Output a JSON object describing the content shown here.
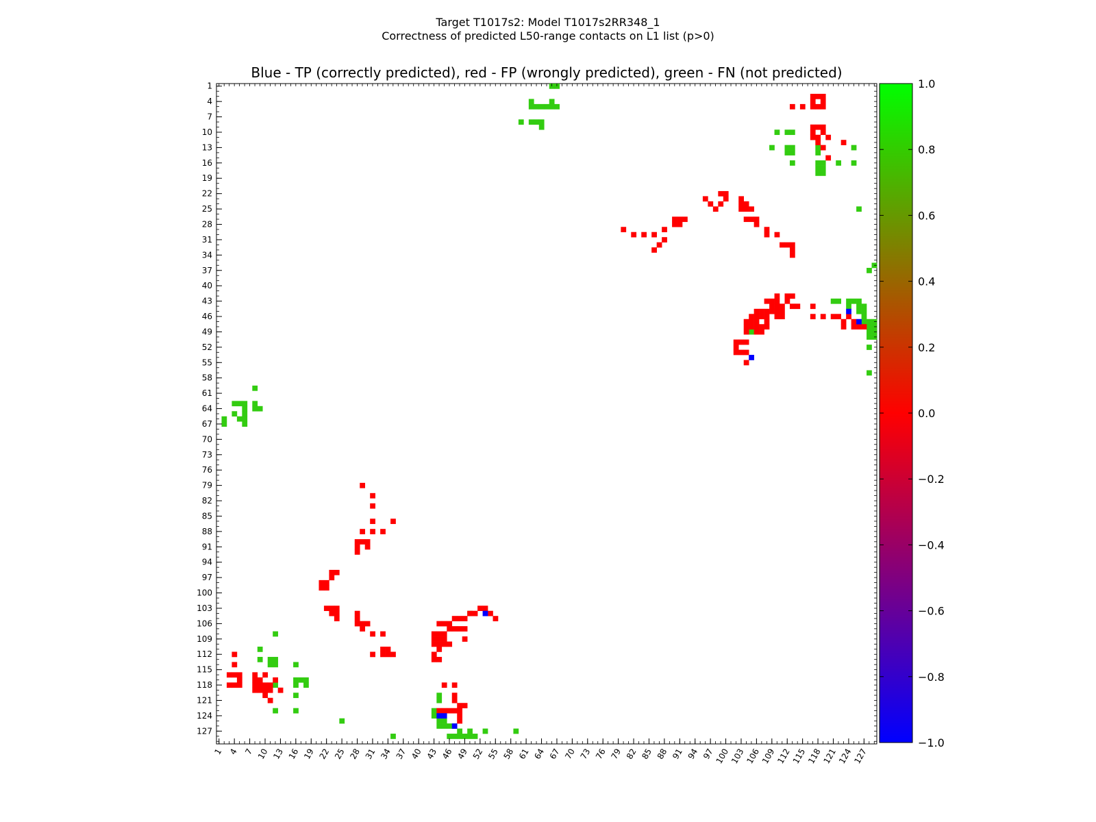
{
  "chart_data": {
    "type": "heatmap",
    "title_line1": "Target T1017s2: Model T1017s2RR348_1",
    "title_line2": "Correctness of predicted L50-range contacts on L1 list (p>0)",
    "subtitle": "Blue - TP (correctly predicted), red - FP (wrongly predicted), green - FN (not predicted)",
    "n_residues": 129,
    "x_range": [
      1,
      129
    ],
    "y_range": [
      1,
      129
    ],
    "x_tick_labels": [
      "1",
      "4",
      "7",
      "10",
      "13",
      "16",
      "19",
      "22",
      "25",
      "28",
      "31",
      "34",
      "37",
      "40",
      "43",
      "46",
      "49",
      "52",
      "55",
      "58",
      "61",
      "64",
      "67",
      "70",
      "73",
      "76",
      "79",
      "82",
      "85",
      "88",
      "91",
      "94",
      "97",
      "100",
      "103",
      "106",
      "109",
      "112",
      "115",
      "118",
      "121",
      "124",
      "127"
    ],
    "y_tick_labels": [
      "1",
      "4",
      "7",
      "10",
      "13",
      "16",
      "19",
      "22",
      "25",
      "28",
      "31",
      "34",
      "37",
      "40",
      "43",
      "46",
      "49",
      "52",
      "55",
      "58",
      "61",
      "64",
      "67",
      "70",
      "73",
      "76",
      "79",
      "82",
      "85",
      "88",
      "91",
      "94",
      "97",
      "100",
      "103",
      "106",
      "109",
      "112",
      "115",
      "118",
      "121",
      "124",
      "127"
    ],
    "colorbar": {
      "min": -1.0,
      "max": 1.0,
      "tick_labels": [
        "1.0",
        "0.8",
        "0.6",
        "0.4",
        "0.2",
        "0.0",
        "−0.2",
        "−0.4",
        "−0.6",
        "−0.8",
        "−1.0"
      ],
      "colors": [
        "#0000ff",
        "#ff0000",
        "#00ff00"
      ]
    },
    "category_colors": {
      "TP": "#0000ff",
      "FP": "#ff0000",
      "FN": "#33cc11"
    },
    "cells": {
      "TP": [
        [
          44,
          124
        ],
        [
          45,
          124
        ],
        [
          47,
          126
        ],
        [
          53,
          104
        ],
        [
          105,
          54
        ],
        [
          124,
          45
        ],
        [
          126,
          47
        ]
      ],
      "FP": [
        [
          29,
          79
        ],
        [
          31,
          81
        ],
        [
          31,
          83
        ],
        [
          29,
          88
        ],
        [
          31,
          88
        ],
        [
          33,
          88
        ],
        [
          31,
          86
        ],
        [
          35,
          86
        ],
        [
          28,
          90
        ],
        [
          29,
          90
        ],
        [
          30,
          90
        ],
        [
          28,
          91
        ],
        [
          30,
          91
        ],
        [
          28,
          92
        ],
        [
          23,
          96
        ],
        [
          24,
          96
        ],
        [
          23,
          97
        ],
        [
          21,
          98
        ],
        [
          22,
          98
        ],
        [
          21,
          99
        ],
        [
          22,
          99
        ],
        [
          22,
          103
        ],
        [
          23,
          103
        ],
        [
          24,
          103
        ],
        [
          23,
          104
        ],
        [
          24,
          104
        ],
        [
          24,
          105
        ],
        [
          28,
          104
        ],
        [
          28,
          105
        ],
        [
          28,
          106
        ],
        [
          29,
          106
        ],
        [
          30,
          106
        ],
        [
          29,
          107
        ],
        [
          31,
          108
        ],
        [
          33,
          108
        ],
        [
          33,
          111
        ],
        [
          34,
          111
        ],
        [
          33,
          112
        ],
        [
          34,
          112
        ],
        [
          35,
          112
        ],
        [
          31,
          112
        ],
        [
          44,
          106
        ],
        [
          45,
          106
        ],
        [
          46,
          106
        ],
        [
          47,
          105
        ],
        [
          48,
          105
        ],
        [
          49,
          105
        ],
        [
          50,
          104
        ],
        [
          51,
          104
        ],
        [
          52,
          103
        ],
        [
          53,
          103
        ],
        [
          54,
          104
        ],
        [
          55,
          105
        ],
        [
          46,
          107
        ],
        [
          47,
          107
        ],
        [
          48,
          107
        ],
        [
          49,
          107
        ],
        [
          43,
          108
        ],
        [
          44,
          108
        ],
        [
          45,
          108
        ],
        [
          43,
          109
        ],
        [
          44,
          109
        ],
        [
          45,
          109
        ],
        [
          43,
          110
        ],
        [
          44,
          110
        ],
        [
          45,
          110
        ],
        [
          46,
          110
        ],
        [
          44,
          111
        ],
        [
          43,
          112
        ],
        [
          43,
          113
        ],
        [
          44,
          113
        ],
        [
          49,
          109
        ],
        [
          4,
          112
        ],
        [
          4,
          114
        ],
        [
          3,
          116
        ],
        [
          4,
          116
        ],
        [
          5,
          116
        ],
        [
          5,
          117
        ],
        [
          3,
          118
        ],
        [
          4,
          118
        ],
        [
          5,
          118
        ],
        [
          8,
          116
        ],
        [
          10,
          116
        ],
        [
          8,
          117
        ],
        [
          9,
          117
        ],
        [
          12,
          117
        ],
        [
          8,
          118
        ],
        [
          9,
          118
        ],
        [
          10,
          118
        ],
        [
          11,
          118
        ],
        [
          8,
          119
        ],
        [
          9,
          119
        ],
        [
          10,
          119
        ],
        [
          11,
          119
        ],
        [
          13,
          119
        ],
        [
          10,
          120
        ],
        [
          11,
          121
        ],
        [
          45,
          118
        ],
        [
          47,
          118
        ],
        [
          47,
          120
        ],
        [
          47,
          121
        ],
        [
          48,
          122
        ],
        [
          49,
          122
        ],
        [
          44,
          123
        ],
        [
          45,
          123
        ],
        [
          46,
          123
        ],
        [
          47,
          123
        ],
        [
          48,
          123
        ],
        [
          48,
          124
        ],
        [
          48,
          125
        ],
        [
          117,
          3
        ],
        [
          118,
          3
        ],
        [
          119,
          3
        ],
        [
          117,
          4
        ],
        [
          119,
          4
        ],
        [
          117,
          5
        ],
        [
          118,
          5
        ],
        [
          119,
          5
        ],
        [
          113,
          5
        ],
        [
          115,
          5
        ],
        [
          117,
          9
        ],
        [
          118,
          9
        ],
        [
          119,
          9
        ],
        [
          117,
          10
        ],
        [
          119,
          10
        ],
        [
          117,
          11
        ],
        [
          118,
          11
        ],
        [
          120,
          11
        ],
        [
          123,
          12
        ],
        [
          118,
          12
        ],
        [
          119,
          13
        ],
        [
          120,
          15
        ],
        [
          96,
          23
        ],
        [
          97,
          24
        ],
        [
          98,
          25
        ],
        [
          99,
          24
        ],
        [
          99,
          22
        ],
        [
          100,
          22
        ],
        [
          100,
          23
        ],
        [
          103,
          23
        ],
        [
          103,
          24
        ],
        [
          104,
          24
        ],
        [
          103,
          25
        ],
        [
          104,
          25
        ],
        [
          105,
          25
        ],
        [
          80,
          29
        ],
        [
          82,
          30
        ],
        [
          84,
          30
        ],
        [
          86,
          30
        ],
        [
          88,
          29
        ],
        [
          88,
          31
        ],
        [
          87,
          32
        ],
        [
          86,
          33
        ],
        [
          90,
          27
        ],
        [
          91,
          27
        ],
        [
          92,
          27
        ],
        [
          90,
          28
        ],
        [
          91,
          28
        ],
        [
          104,
          27
        ],
        [
          105,
          27
        ],
        [
          106,
          27
        ],
        [
          106,
          28
        ],
        [
          108,
          29
        ],
        [
          108,
          30
        ],
        [
          110,
          30
        ],
        [
          111,
          32
        ],
        [
          112,
          32
        ],
        [
          113,
          32
        ],
        [
          113,
          33
        ],
        [
          113,
          34
        ],
        [
          110,
          42
        ],
        [
          112,
          42
        ],
        [
          113,
          42
        ],
        [
          108,
          43
        ],
        [
          109,
          43
        ],
        [
          110,
          43
        ],
        [
          112,
          43
        ],
        [
          109,
          44
        ],
        [
          110,
          44
        ],
        [
          111,
          44
        ],
        [
          113,
          44
        ],
        [
          114,
          44
        ],
        [
          106,
          45
        ],
        [
          107,
          45
        ],
        [
          108,
          45
        ],
        [
          109,
          45
        ],
        [
          110,
          45
        ],
        [
          111,
          45
        ],
        [
          105,
          46
        ],
        [
          106,
          46
        ],
        [
          107,
          46
        ],
        [
          108,
          46
        ],
        [
          110,
          46
        ],
        [
          111,
          46
        ],
        [
          104,
          47
        ],
        [
          105,
          47
        ],
        [
          106,
          47
        ],
        [
          108,
          47
        ],
        [
          104,
          48
        ],
        [
          105,
          48
        ],
        [
          106,
          48
        ],
        [
          107,
          48
        ],
        [
          108,
          48
        ],
        [
          104,
          49
        ],
        [
          106,
          49
        ],
        [
          107,
          49
        ],
        [
          102,
          51
        ],
        [
          103,
          51
        ],
        [
          104,
          51
        ],
        [
          102,
          52
        ],
        [
          102,
          53
        ],
        [
          103,
          53
        ],
        [
          104,
          53
        ],
        [
          104,
          55
        ],
        [
          117,
          44
        ],
        [
          117,
          46
        ],
        [
          119,
          46
        ],
        [
          121,
          46
        ],
        [
          122,
          46
        ],
        [
          123,
          47
        ],
        [
          123,
          48
        ],
        [
          124,
          46
        ],
        [
          125,
          47
        ],
        [
          125,
          48
        ],
        [
          126,
          48
        ],
        [
          127,
          48
        ]
      ],
      "FN": [
        [
          66,
          1
        ],
        [
          67,
          1
        ],
        [
          62,
          4
        ],
        [
          62,
          5
        ],
        [
          63,
          5
        ],
        [
          64,
          5
        ],
        [
          65,
          5
        ],
        [
          66,
          4
        ],
        [
          66,
          5
        ],
        [
          67,
          5
        ],
        [
          60,
          8
        ],
        [
          62,
          8
        ],
        [
          63,
          8
        ],
        [
          64,
          8
        ],
        [
          64,
          9
        ],
        [
          110,
          10
        ],
        [
          112,
          10
        ],
        [
          113,
          10
        ],
        [
          109,
          13
        ],
        [
          112,
          13
        ],
        [
          113,
          13
        ],
        [
          112,
          14
        ],
        [
          113,
          14
        ],
        [
          118,
          13
        ],
        [
          118,
          14
        ],
        [
          125,
          13
        ],
        [
          113,
          16
        ],
        [
          118,
          16
        ],
        [
          119,
          16
        ],
        [
          118,
          17
        ],
        [
          119,
          17
        ],
        [
          118,
          18
        ],
        [
          119,
          18
        ],
        [
          122,
          16
        ],
        [
          125,
          16
        ],
        [
          126,
          25
        ],
        [
          129,
          36
        ],
        [
          128,
          37
        ],
        [
          121,
          43
        ],
        [
          122,
          43
        ],
        [
          124,
          43
        ],
        [
          125,
          43
        ],
        [
          126,
          43
        ],
        [
          124,
          44
        ],
        [
          126,
          44
        ],
        [
          127,
          44
        ],
        [
          126,
          45
        ],
        [
          127,
          45
        ],
        [
          127,
          46
        ],
        [
          127,
          47
        ],
        [
          128,
          47
        ],
        [
          129,
          47
        ],
        [
          128,
          48
        ],
        [
          129,
          48
        ],
        [
          129,
          49
        ],
        [
          128,
          49
        ],
        [
          128,
          50
        ],
        [
          129,
          50
        ],
        [
          105,
          49
        ],
        [
          128,
          52
        ],
        [
          128,
          57
        ],
        [
          8,
          60
        ],
        [
          4,
          63
        ],
        [
          5,
          63
        ],
        [
          6,
          63
        ],
        [
          8,
          63
        ],
        [
          6,
          64
        ],
        [
          8,
          64
        ],
        [
          9,
          64
        ],
        [
          4,
          65
        ],
        [
          6,
          65
        ],
        [
          2,
          66
        ],
        [
          5,
          66
        ],
        [
          6,
          66
        ],
        [
          2,
          67
        ],
        [
          6,
          67
        ],
        [
          12,
          108
        ],
        [
          9,
          111
        ],
        [
          9,
          113
        ],
        [
          11,
          113
        ],
        [
          12,
          113
        ],
        [
          11,
          114
        ],
        [
          12,
          114
        ],
        [
          16,
          114
        ],
        [
          12,
          118
        ],
        [
          16,
          117
        ],
        [
          17,
          117
        ],
        [
          18,
          117
        ],
        [
          16,
          118
        ],
        [
          18,
          118
        ],
        [
          16,
          120
        ],
        [
          16,
          123
        ],
        [
          12,
          123
        ],
        [
          25,
          125
        ],
        [
          50,
          104
        ],
        [
          44,
          120
        ],
        [
          44,
          121
        ],
        [
          43,
          123
        ],
        [
          43,
          124
        ],
        [
          44,
          125
        ],
        [
          45,
          125
        ],
        [
          44,
          126
        ],
        [
          45,
          126
        ],
        [
          46,
          126
        ],
        [
          47,
          126
        ],
        [
          48,
          127
        ],
        [
          50,
          127
        ],
        [
          53,
          127
        ],
        [
          59,
          127
        ],
        [
          35,
          128
        ],
        [
          46,
          128
        ],
        [
          47,
          128
        ],
        [
          48,
          128
        ],
        [
          49,
          128
        ],
        [
          50,
          128
        ],
        [
          51,
          128
        ]
      ]
    }
  }
}
